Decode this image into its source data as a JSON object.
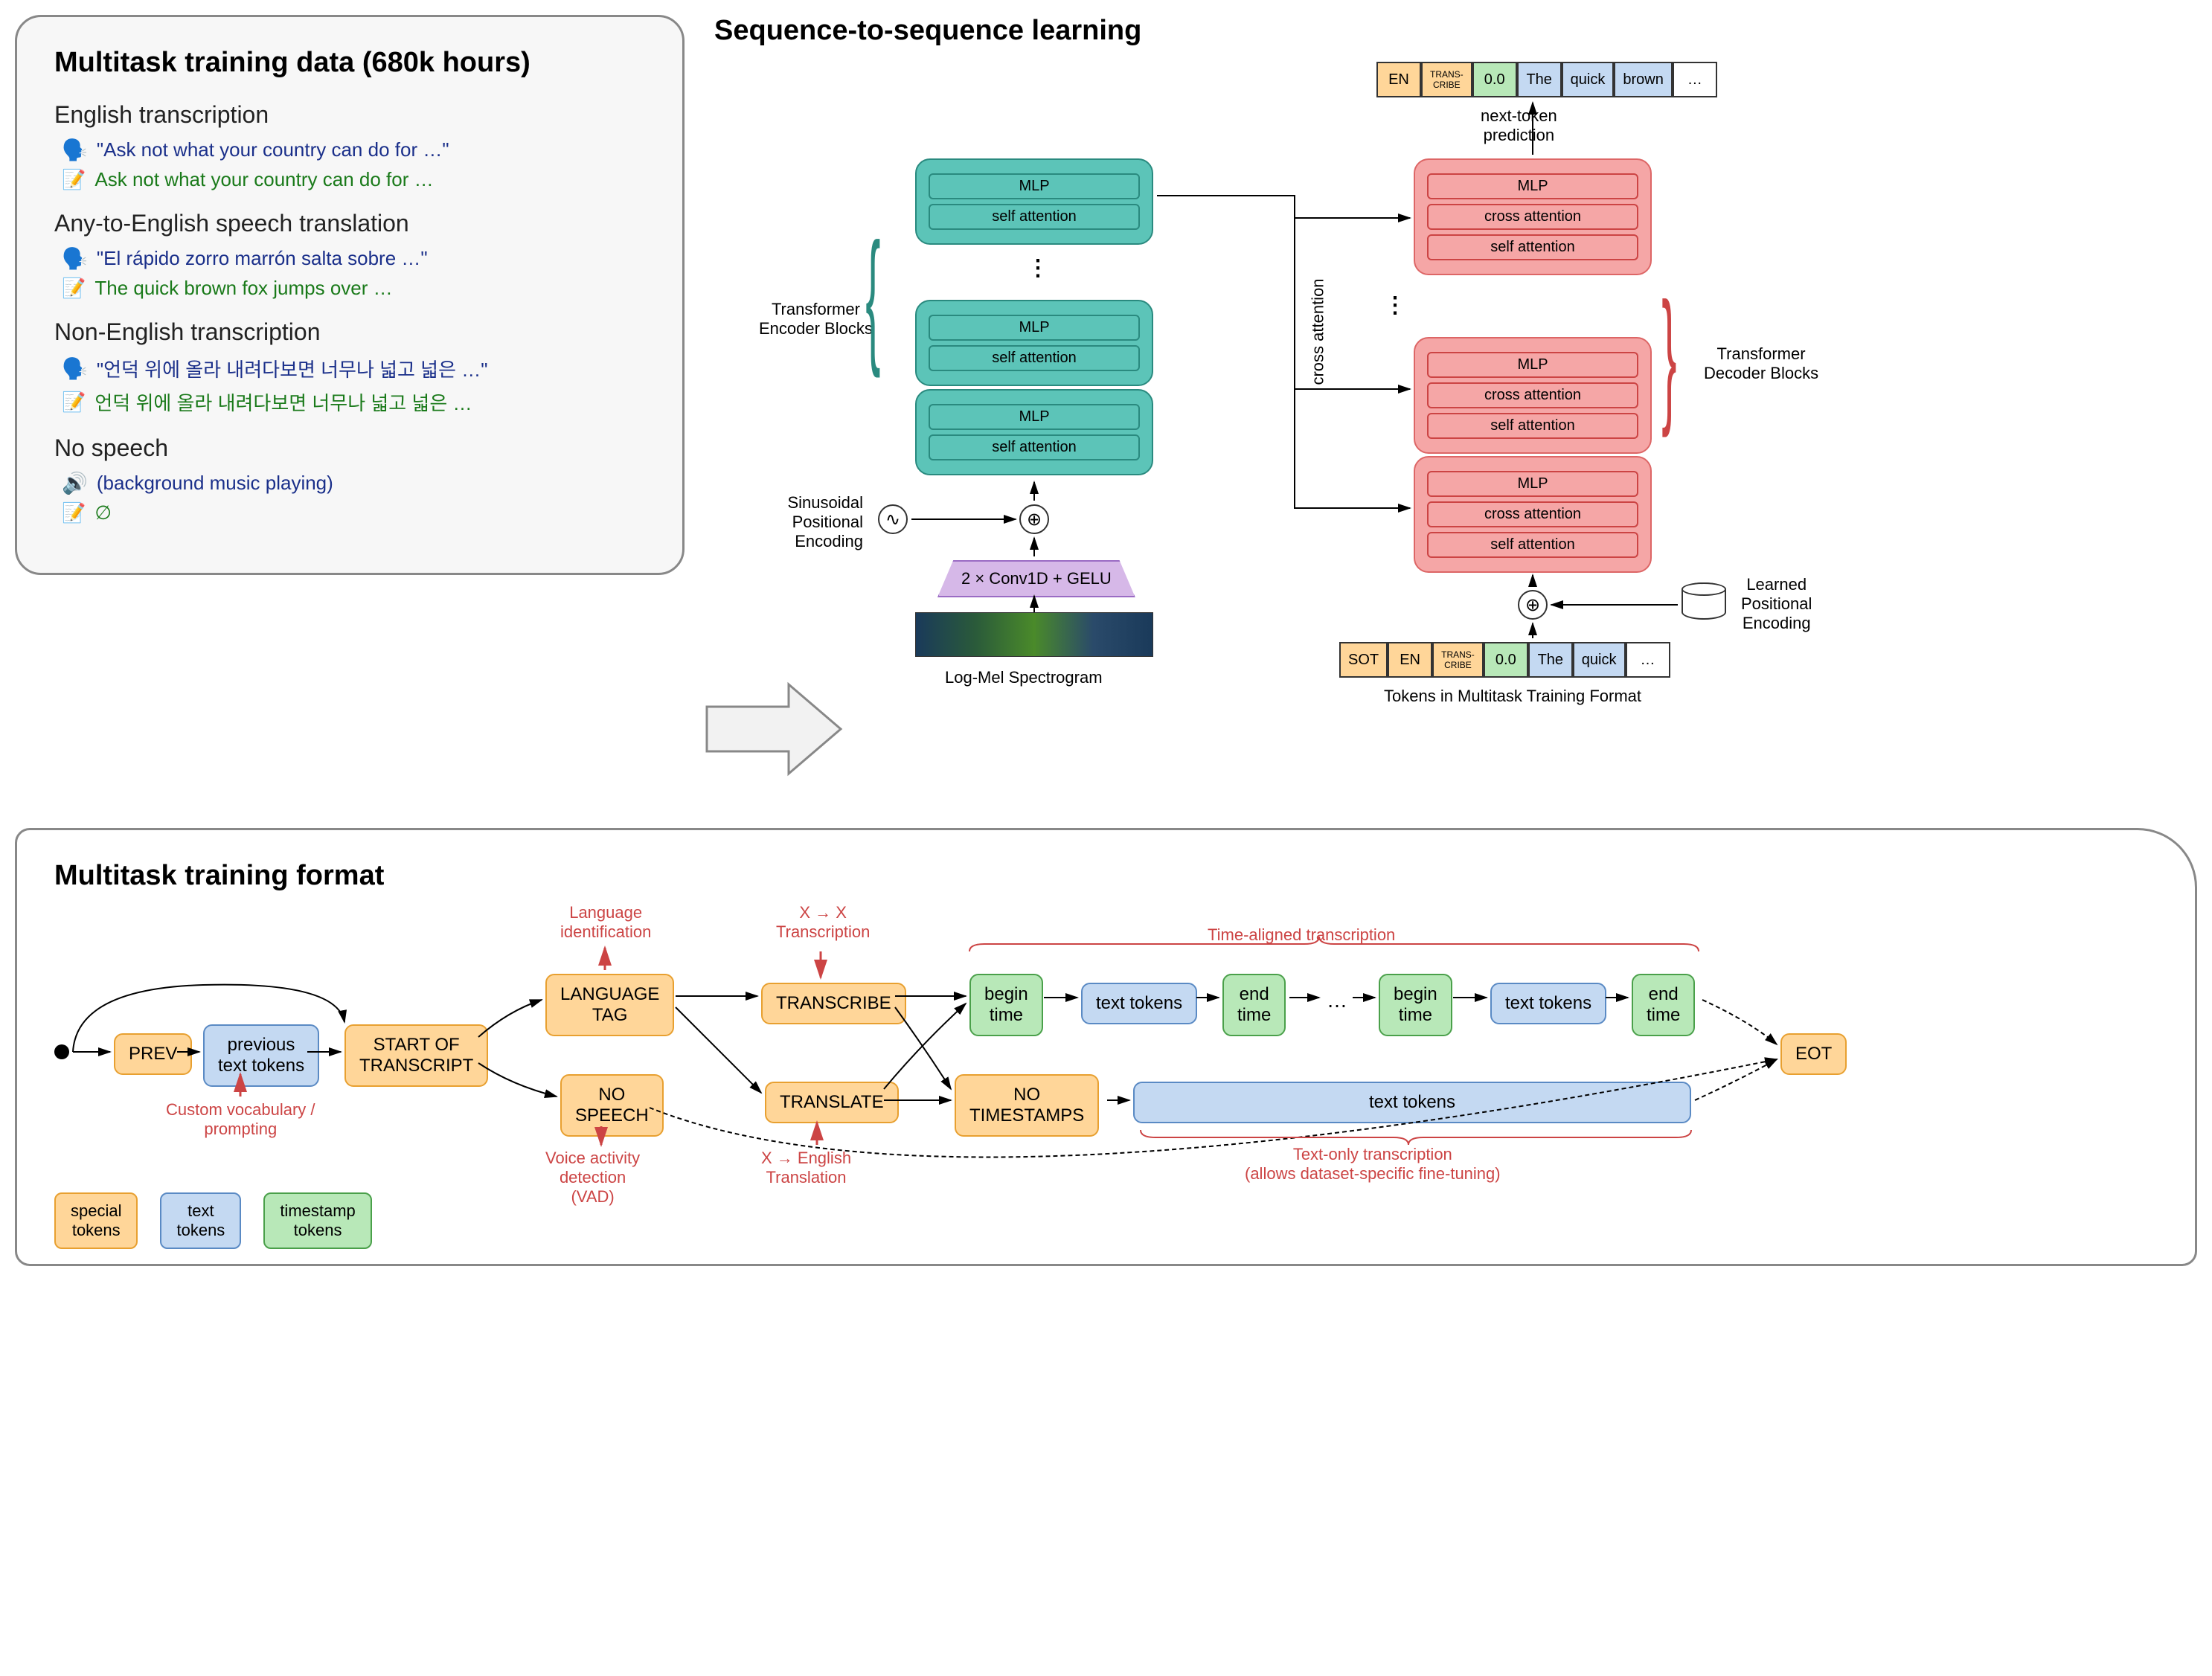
{
  "panels": {
    "training_data": {
      "title": "Multitask training data (680k hours)",
      "tasks": [
        {
          "title": "English transcription",
          "audio": "\"Ask not what your country can do for …\"",
          "output": "Ask not what your country can do for …"
        },
        {
          "title": "Any-to-English speech translation",
          "audio": "\"El rápido zorro marrón salta sobre …\"",
          "output": "The quick brown fox jumps over …"
        },
        {
          "title": "Non-English transcription",
          "audio": "\"언덕 위에 올라 내려다보면 너무나 넓고 넓은 …\"",
          "output": "언덕 위에 올라 내려다보면 너무나 넓고 넓은 …"
        },
        {
          "title": "No speech",
          "audio": "(background music playing)",
          "output": "∅",
          "audio_icon": "speaker"
        }
      ]
    },
    "seq2seq": {
      "title": "Sequence-to-sequence learning",
      "encoder_label": "Transformer\nEncoder Blocks",
      "decoder_label": "Transformer\nDecoder Blocks",
      "sinusoidal": "Sinusoidal\nPositional\nEncoding",
      "learned": "Learned\nPositional\nEncoding",
      "conv": "2 × Conv1D + GELU",
      "spectrogram_label": "Log-Mel Spectrogram",
      "tokens_label": "Tokens in Multitask Training Format",
      "next_token": "next-token\nprediction",
      "cross_attn": "cross attention",
      "enc_sublayers": [
        "MLP",
        "self attention"
      ],
      "dec_sublayers": [
        "MLP",
        "cross attention",
        "self attention"
      ],
      "output_tokens": [
        {
          "text": "EN",
          "color": "orange"
        },
        {
          "text": "TRANS-\nCRIBE",
          "color": "orange",
          "small": true
        },
        {
          "text": "0.0",
          "color": "green"
        },
        {
          "text": "The",
          "color": "blue"
        },
        {
          "text": "quick",
          "color": "blue"
        },
        {
          "text": "brown",
          "color": "blue"
        },
        {
          "text": "…",
          "color": "white"
        }
      ],
      "input_tokens": [
        {
          "text": "SOT",
          "color": "orange"
        },
        {
          "text": "EN",
          "color": "orange"
        },
        {
          "text": "TRANS-\nCRIBE",
          "color": "orange",
          "small": true
        },
        {
          "text": "0.0",
          "color": "green"
        },
        {
          "text": "The",
          "color": "blue"
        },
        {
          "text": "quick",
          "color": "blue"
        },
        {
          "text": "…",
          "color": "white"
        }
      ]
    },
    "format": {
      "title": "Multitask training format",
      "flow_boxes": {
        "prev": "PREV",
        "prev_tokens": "previous\ntext tokens",
        "sot": "START OF\nTRANSCRIPT",
        "lang_tag": "LANGUAGE\nTAG",
        "no_speech": "NO\nSPEECH",
        "transcribe": "TRANSCRIBE",
        "translate": "TRANSLATE",
        "begin_time": "begin\ntime",
        "text_tokens": "text tokens",
        "end_time": "end\ntime",
        "no_ts": "NO\nTIMESTAMPS",
        "text_tokens_long": "text tokens",
        "eot": "EOT"
      },
      "red_labels": {
        "lang_id": "Language\nidentification",
        "x_to_x": "X → X\nTranscription",
        "time_aligned": "Time-aligned transcription",
        "custom_vocab": "Custom vocabulary /\nprompting",
        "vad": "Voice activity\ndetection\n(VAD)",
        "x_to_en": "X → English\nTranslation",
        "text_only": "Text-only transcription\n(allows dataset-specific fine-tuning)"
      },
      "legend": {
        "special": "special\ntokens",
        "text": "text\ntokens",
        "timestamp": "timestamp\ntokens"
      }
    }
  },
  "colors": {
    "encoder": "#5cc4b8",
    "encoder_border": "#2a8a7f",
    "decoder": "#f5a6a6",
    "decoder_border": "#d66",
    "orange": "#ffd699",
    "green": "#b8e8b8",
    "blue": "#c4d9f2",
    "red_annot": "#c44",
    "audio_text": "#1a2f8a",
    "output_text": "#1a7a1a"
  }
}
